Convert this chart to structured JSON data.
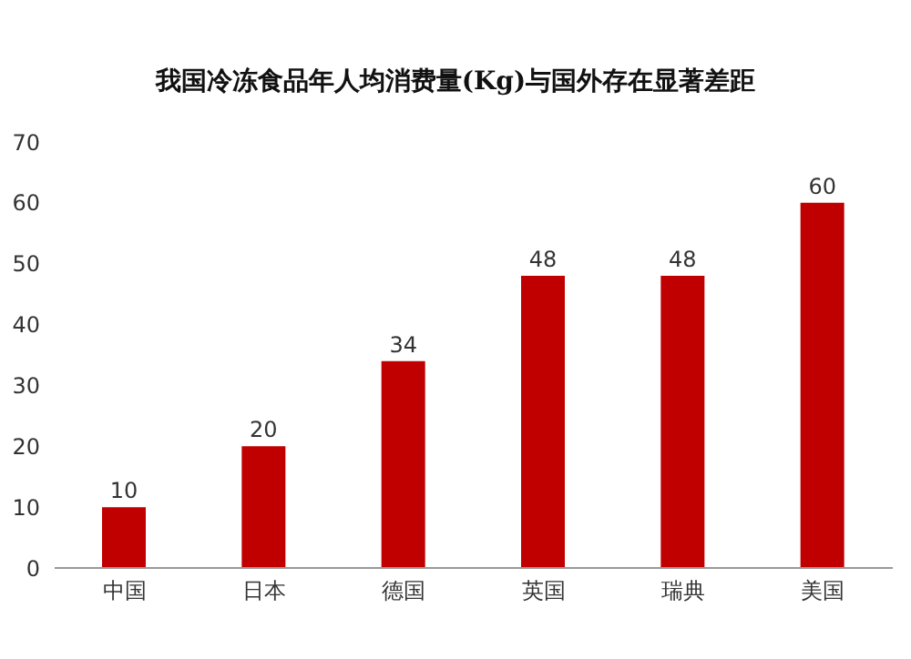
{
  "chart_data": {
    "type": "bar",
    "title": "我国冷冻食品年人均消费量(Kg)与国外存在显著差距",
    "categories": [
      "中国",
      "日本",
      "德国",
      "英国",
      "瑞典",
      "美国"
    ],
    "values": [
      10,
      20,
      34,
      48,
      48,
      60
    ],
    "color": "#c00000",
    "ylim": [
      0,
      70
    ],
    "yticks": [
      0,
      10,
      20,
      30,
      40,
      50,
      60,
      70
    ],
    "data_labels": true,
    "grid": false
  }
}
